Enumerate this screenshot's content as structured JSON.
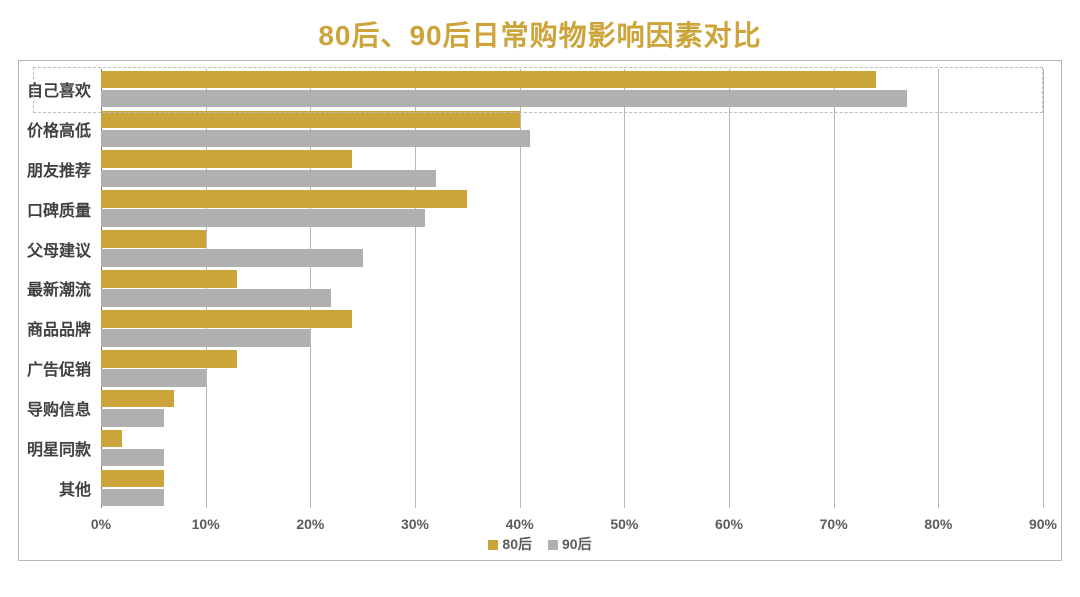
{
  "chart": {
    "type": "bar",
    "orientation": "horizontal",
    "title": "80后、90后日常购物影响因素对比",
    "title_color": "#cda43a",
    "title_fontsize": 28,
    "background_color": "#ffffff",
    "frame_border_color": "#b6b6b6",
    "grid_color": "#b8b8b8",
    "zero_axis_color": "#7a7a7a",
    "x_min": 0,
    "x_max": 90,
    "x_tick_step": 10,
    "x_tick_suffix": "%",
    "x_tick_fontsize": 14,
    "x_tick_color": "#5c5c5c",
    "y_label_fontsize": 16,
    "y_label_color": "#404040",
    "categories": [
      "自己喜欢",
      "价格高低",
      "朋友推荐",
      "口碑质量",
      "父母建议",
      "最新潮流",
      "商品品牌",
      "广告促销",
      "导购信息",
      "明星同款",
      "其他"
    ],
    "highlight_category_index": 0,
    "highlight_border_color": "#bdbdbd",
    "series": [
      {
        "name": "80后",
        "color": "#cba43a",
        "values": [
          74,
          40,
          24,
          35,
          10,
          13,
          24,
          13,
          7,
          2,
          6
        ]
      },
      {
        "name": "90后",
        "color": "#b0b0b0",
        "values": [
          77,
          41,
          32,
          31,
          25,
          22,
          20,
          10,
          6,
          6,
          6
        ]
      }
    ],
    "legend": {
      "position": "bottom-center",
      "fontsize": 14,
      "text_color": "#5c5c5c"
    }
  }
}
